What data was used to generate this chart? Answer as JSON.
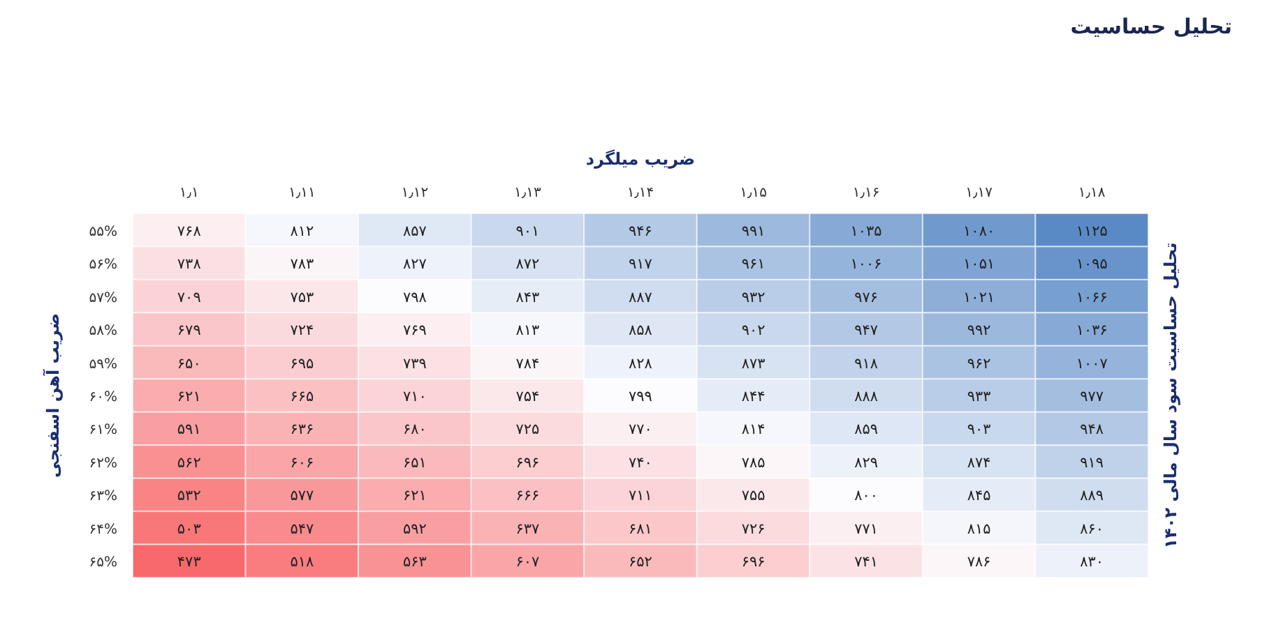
{
  "chart_data": {
    "type": "heatmap",
    "title": "تحلیل حساسیت",
    "xlabel": "ضریب میلگرد",
    "ylabel": "ضریب آهن اسفنجی",
    "y2label": "تحلیل حساسیت سود سال مالی ۱۴۰۲",
    "categories": [
      "۱٫۱",
      "۱٫۱۱",
      "۱٫۱۲",
      "۱٫۱۳",
      "۱٫۱۴",
      "۱٫۱۵",
      "۱٫۱۶",
      "۱٫۱۷",
      "۱٫۱۸"
    ],
    "y_categories": [
      "۵۵%",
      "۵۶%",
      "۵۷%",
      "۵۸%",
      "۵۹%",
      "۶۰%",
      "۶۱%",
      "۶۲%",
      "۶۳%",
      "۶۴%",
      "۶۵%"
    ],
    "cells": [
      [
        768,
        812,
        857,
        901,
        946,
        991,
        1035,
        1080,
        1125
      ],
      [
        738,
        783,
        827,
        872,
        917,
        961,
        1006,
        1051,
        1095
      ],
      [
        709,
        753,
        798,
        843,
        887,
        932,
        976,
        1021,
        1066
      ],
      [
        679,
        724,
        769,
        813,
        858,
        902,
        947,
        992,
        1036
      ],
      [
        650,
        695,
        739,
        784,
        828,
        873,
        918,
        962,
        1007
      ],
      [
        621,
        665,
        710,
        754,
        799,
        844,
        888,
        933,
        977
      ],
      [
        591,
        636,
        680,
        725,
        770,
        814,
        859,
        903,
        948
      ],
      [
        562,
        606,
        651,
        696,
        740,
        785,
        829,
        874,
        919
      ],
      [
        532,
        577,
        621,
        666,
        711,
        755,
        800,
        845,
        889
      ],
      [
        503,
        547,
        592,
        637,
        681,
        726,
        771,
        815,
        860
      ],
      [
        473,
        518,
        563,
        607,
        652,
        696,
        741,
        786,
        830
      ]
    ],
    "cell_labels": [
      [
        "۷۶۸",
        "۸۱۲",
        "۸۵۷",
        "۹۰۱",
        "۹۴۶",
        "۹۹۱",
        "۱۰۳۵",
        "۱۰۸۰",
        "۱۱۲۵"
      ],
      [
        "۷۳۸",
        "۷۸۳",
        "۸۲۷",
        "۸۷۲",
        "۹۱۷",
        "۹۶۱",
        "۱۰۰۶",
        "۱۰۵۱",
        "۱۰۹۵"
      ],
      [
        "۷۰۹",
        "۷۵۳",
        "۷۹۸",
        "۸۴۳",
        "۸۸۷",
        "۹۳۲",
        "۹۷۶",
        "۱۰۲۱",
        "۱۰۶۶"
      ],
      [
        "۶۷۹",
        "۷۲۴",
        "۷۶۹",
        "۸۱۳",
        "۸۵۸",
        "۹۰۲",
        "۹۴۷",
        "۹۹۲",
        "۱۰۳۶"
      ],
      [
        "۶۵۰",
        "۶۹۵",
        "۷۳۹",
        "۷۸۴",
        "۸۲۸",
        "۸۷۳",
        "۹۱۸",
        "۹۶۲",
        "۱۰۰۷"
      ],
      [
        "۶۲۱",
        "۶۶۵",
        "۷۱۰",
        "۷۵۴",
        "۷۹۹",
        "۸۴۴",
        "۸۸۸",
        "۹۳۳",
        "۹۷۷"
      ],
      [
        "۵۹۱",
        "۶۳۶",
        "۶۸۰",
        "۷۲۵",
        "۷۷۰",
        "۸۱۴",
        "۸۵۹",
        "۹۰۳",
        "۹۴۸"
      ],
      [
        "۵۶۲",
        "۶۰۶",
        "۶۵۱",
        "۶۹۶",
        "۷۴۰",
        "۷۸۵",
        "۸۲۹",
        "۸۷۴",
        "۹۱۹"
      ],
      [
        "۵۳۲",
        "۵۷۷",
        "۶۲۱",
        "۶۶۶",
        "۷۱۱",
        "۷۵۵",
        "۸۰۰",
        "۸۴۵",
        "۸۸۹"
      ],
      [
        "۵۰۳",
        "۵۴۷",
        "۵۹۲",
        "۶۳۷",
        "۶۸۱",
        "۷۲۶",
        "۷۷۱",
        "۸۱۵",
        "۸۶۰"
      ],
      [
        "۴۷۳",
        "۵۱۸",
        "۵۶۳",
        "۶۰۷",
        "۶۵۲",
        "۶۹۶",
        "۷۴۱",
        "۷۸۶",
        "۸۳۰"
      ]
    ]
  }
}
